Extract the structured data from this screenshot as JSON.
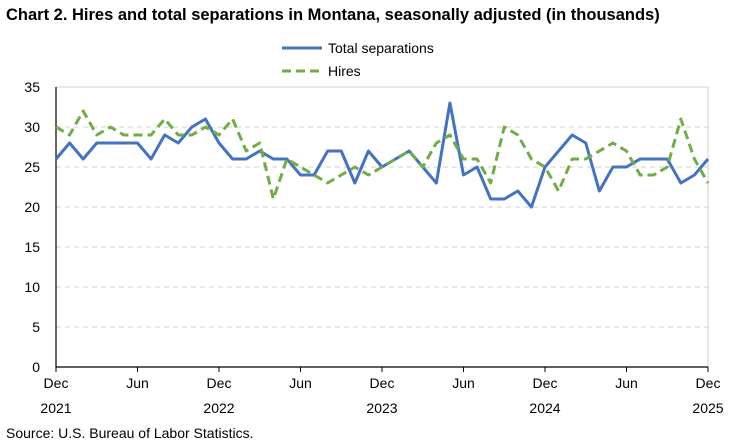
{
  "chart_data": {
    "type": "line",
    "title": "Chart 2. Hires and total separations in Montana, seasonally adjusted (in thousands)",
    "source": "Source: U.S. Bureau of Labor Statistics.",
    "xlabel": "",
    "ylabel": "",
    "ylim": [
      0,
      35
    ],
    "yticks": [
      0,
      5,
      10,
      15,
      20,
      25,
      30,
      35
    ],
    "grid": true,
    "legend": "top-center",
    "x_range": [
      "Dec 2021",
      "Dec 2025"
    ],
    "xtick_labels": [
      {
        "month": "Dec",
        "year": "2021",
        "index": 0
      },
      {
        "month": "Jun",
        "year": "",
        "index": 6
      },
      {
        "month": "Dec",
        "year": "2022",
        "index": 12
      },
      {
        "month": "Jun",
        "year": "",
        "index": 18
      },
      {
        "month": "Dec",
        "year": "2023",
        "index": 24
      },
      {
        "month": "Jun",
        "year": "",
        "index": 30
      },
      {
        "month": "Dec",
        "year": "2024",
        "index": 36
      },
      {
        "month": "Jun",
        "year": "",
        "index": 42
      },
      {
        "month": "Dec",
        "year": "2025",
        "index": 48
      }
    ],
    "series": [
      {
        "name": "Total separations",
        "color": "#4472C4",
        "style": "solid",
        "values": [
          26,
          28,
          26,
          28,
          28,
          28,
          28,
          26,
          29,
          28,
          30,
          31,
          28,
          26,
          26,
          27,
          26,
          26,
          24,
          24,
          27,
          27,
          23,
          27,
          25,
          26,
          27,
          25,
          23,
          33,
          24,
          25,
          21,
          21,
          22,
          20,
          25,
          27,
          29,
          28,
          22,
          25,
          25,
          26,
          26,
          26,
          23,
          24,
          26
        ]
      },
      {
        "name": "Hires",
        "color": "#70AD47",
        "style": "dashed",
        "values": [
          30,
          29,
          32,
          29,
          30,
          29,
          29,
          29,
          31,
          29,
          29,
          30,
          29,
          31,
          27,
          28,
          21,
          26,
          25,
          24,
          23,
          24,
          25,
          24,
          25,
          26,
          27,
          25,
          28,
          29,
          26,
          26,
          23,
          30,
          29,
          26,
          25,
          22,
          26,
          26,
          27,
          28,
          27,
          24,
          24,
          25,
          31,
          26,
          23
        ]
      }
    ]
  }
}
